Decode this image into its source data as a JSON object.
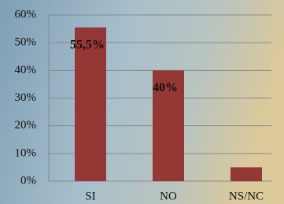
{
  "chart_data": {
    "type": "bar",
    "categories": [
      "SI",
      "NO",
      "NS/NC"
    ],
    "values": [
      55.5,
      40,
      5
    ],
    "value_labels": [
      "55,5%",
      "40%",
      null
    ],
    "color": "#953735",
    "ylim": [
      0,
      60
    ],
    "yticks": [
      {
        "value": 0,
        "label": "0%"
      },
      {
        "value": 10,
        "label": "10%"
      },
      {
        "value": 20,
        "label": "20%"
      },
      {
        "value": 30,
        "label": "30%"
      },
      {
        "value": 40,
        "label": "40%"
      },
      {
        "value": 50,
        "label": "50%"
      },
      {
        "value": 60,
        "label": "60%"
      }
    ],
    "grid": true
  }
}
